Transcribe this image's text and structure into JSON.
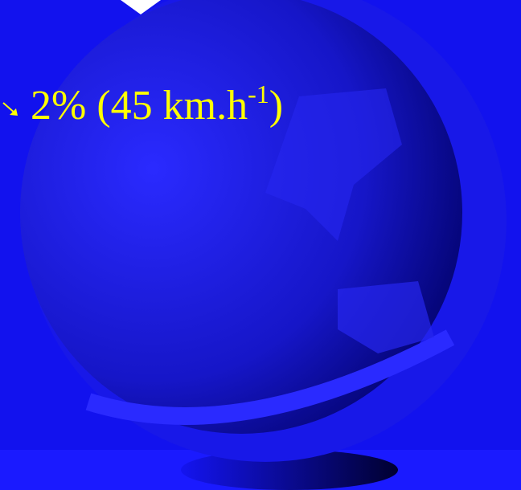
{
  "slide": {
    "text": "2% (45 km.h",
    "superscript": "-1",
    "closing": ")"
  }
}
